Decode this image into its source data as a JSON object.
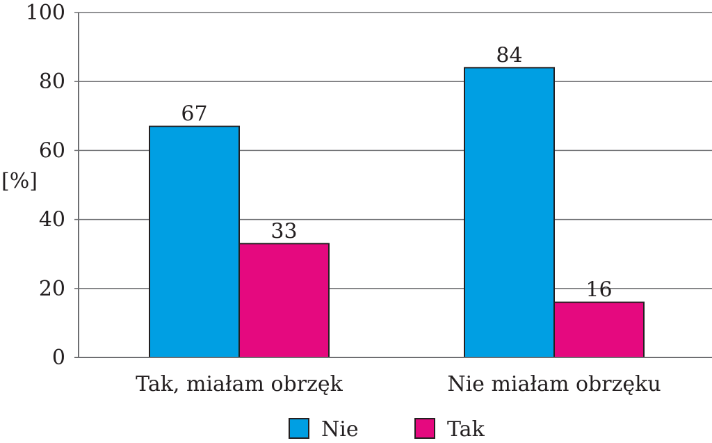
{
  "chart_data": {
    "type": "bar",
    "categories": [
      "Tak, miałam obrzęk",
      "Nie miałam obrzęku"
    ],
    "series": [
      {
        "name": "Nie",
        "values": [
          67,
          84
        ],
        "color": "#009fe3"
      },
      {
        "name": "Tak",
        "values": [
          33,
          16
        ],
        "color": "#e5097f"
      }
    ],
    "title": "",
    "xlabel": "",
    "ylabel": "[%]",
    "ylim": [
      0,
      100
    ],
    "yticks": [
      "0",
      "20",
      "40",
      "60",
      "80",
      "100"
    ],
    "grid": "horizontal",
    "legend_position": "bottom-center"
  }
}
